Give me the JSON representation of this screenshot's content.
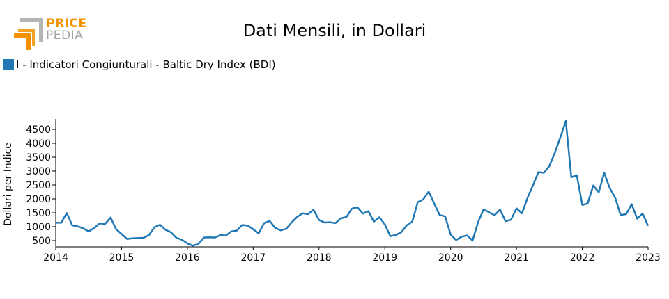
{
  "logo": {
    "line1": "PRICE",
    "line2": "PEDIA",
    "accent_color": "#f39200",
    "gray_color": "#a6a6a6"
  },
  "chart_data": {
    "type": "line",
    "title": "Dati Mensili, in Dollari",
    "xlabel": "",
    "ylabel": "Dollari per Indice",
    "xlim": [
      2014,
      2023
    ],
    "ylim": [
      300,
      4900
    ],
    "xticks": [
      2014,
      2015,
      2016,
      2017,
      2018,
      2019,
      2020,
      2021,
      2022,
      2023
    ],
    "yticks": [
      500,
      1000,
      1500,
      2000,
      2500,
      3000,
      3500,
      4000,
      4500
    ],
    "grid": false,
    "legend_position": "top-left",
    "series": [
      {
        "name": "I - Indicatori Congiunturali - Baltic Dry Index (BDI)",
        "color": "#1f77b4",
        "x": [
          2014.0,
          2014.083,
          2014.167,
          2014.25,
          2014.333,
          2014.417,
          2014.5,
          2014.583,
          2014.667,
          2014.75,
          2014.833,
          2014.917,
          2015.0,
          2015.083,
          2015.167,
          2015.25,
          2015.333,
          2015.417,
          2015.5,
          2015.583,
          2015.667,
          2015.75,
          2015.833,
          2015.917,
          2016.0,
          2016.083,
          2016.167,
          2016.25,
          2016.333,
          2016.417,
          2016.5,
          2016.583,
          2016.667,
          2016.75,
          2016.833,
          2016.917,
          2017.0,
          2017.083,
          2017.167,
          2017.25,
          2017.333,
          2017.417,
          2017.5,
          2017.583,
          2017.667,
          2017.75,
          2017.833,
          2017.917,
          2018.0,
          2018.083,
          2018.167,
          2018.25,
          2018.333,
          2018.417,
          2018.5,
          2018.583,
          2018.667,
          2018.75,
          2018.833,
          2018.917,
          2019.0,
          2019.083,
          2019.167,
          2019.25,
          2019.333,
          2019.417,
          2019.5,
          2019.583,
          2019.667,
          2019.75,
          2019.833,
          2019.917,
          2020.0,
          2020.083,
          2020.167,
          2020.25,
          2020.333,
          2020.417,
          2020.5,
          2020.583,
          2020.667,
          2020.75,
          2020.833,
          2020.917,
          2021.0,
          2021.083,
          2021.167,
          2021.25,
          2021.333,
          2021.417,
          2021.5,
          2021.583,
          2021.667,
          2021.75,
          2021.833,
          2021.917,
          2022.0,
          2022.083,
          2022.167,
          2022.25,
          2022.333,
          2022.417,
          2022.5,
          2022.583,
          2022.667,
          2022.75,
          2022.833,
          2022.917,
          2023.0
        ],
        "values": [
          1140,
          1140,
          1490,
          1050,
          1010,
          940,
          830,
          950,
          1120,
          1100,
          1330,
          910,
          740,
          560,
          580,
          590,
          600,
          700,
          980,
          1070,
          890,
          800,
          600,
          530,
          400,
          320,
          380,
          610,
          620,
          610,
          700,
          680,
          830,
          860,
          1060,
          1040,
          910,
          760,
          1130,
          1210,
          960,
          870,
          920,
          1150,
          1350,
          1480,
          1450,
          1610,
          1240,
          1150,
          1160,
          1130,
          1300,
          1350,
          1650,
          1700,
          1470,
          1560,
          1180,
          1340,
          1080,
          660,
          700,
          800,
          1050,
          1180,
          1880,
          1980,
          2260,
          1830,
          1420,
          1370,
          720,
          520,
          640,
          690,
          500,
          1160,
          1620,
          1520,
          1410,
          1620,
          1200,
          1250,
          1660,
          1480,
          2030,
          2480,
          2960,
          2940,
          3180,
          3660,
          4210,
          4800,
          2780,
          2850,
          1780,
          1840,
          2480,
          2240,
          2940,
          2390,
          2040,
          1420,
          1450,
          1810,
          1290,
          1470,
          1030
        ]
      }
    ]
  }
}
